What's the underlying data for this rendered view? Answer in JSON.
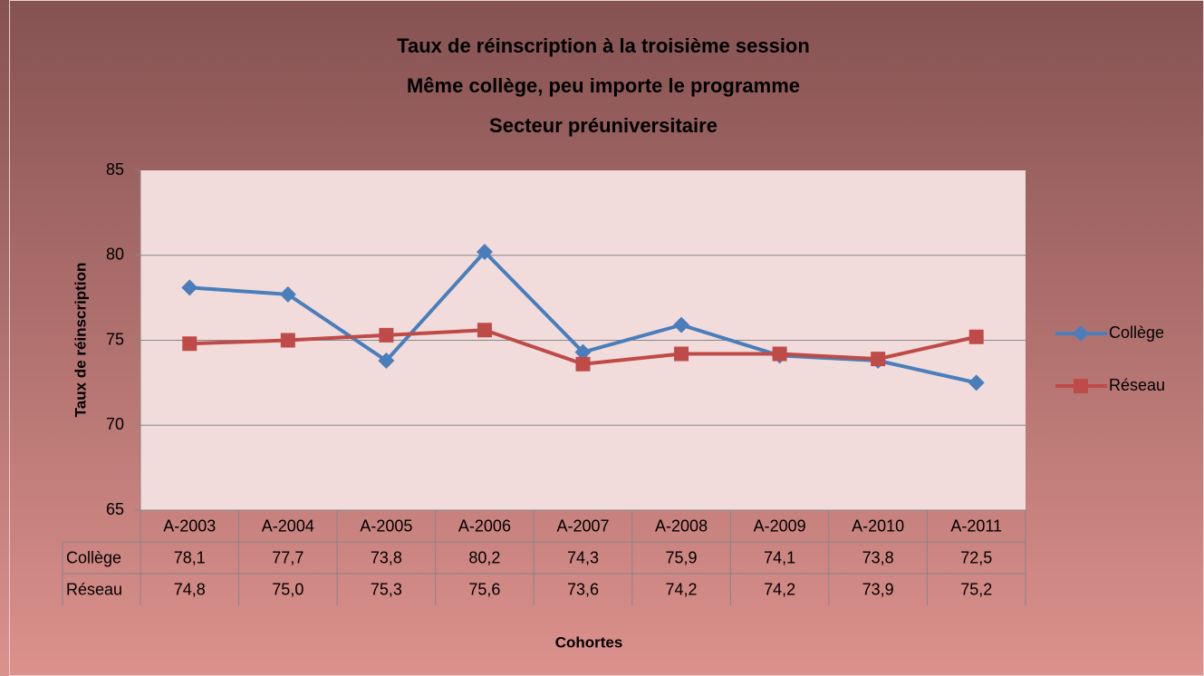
{
  "chart_data": {
    "type": "line",
    "title": [
      "Taux de réinscription à la troisième session",
      "Même collège, peu importe le programme",
      "Secteur préuniversitaire"
    ],
    "categories": [
      "A-2003",
      "A-2004",
      "A-2005",
      "A-2006",
      "A-2007",
      "A-2008",
      "A-2009",
      "A-2010",
      "A-2011"
    ],
    "series": [
      {
        "name": "Collège",
        "color": "#4a7ebb",
        "marker": "diamond",
        "values": [
          78.1,
          77.7,
          73.8,
          80.2,
          74.3,
          75.9,
          74.1,
          73.8,
          72.5
        ],
        "value_labels": [
          "78,1",
          "77,7",
          "73,8",
          "80,2",
          "74,3",
          "75,9",
          "74,1",
          "73,8",
          "72,5"
        ]
      },
      {
        "name": "Réseau",
        "color": "#be4b48",
        "marker": "square",
        "values": [
          74.8,
          75.0,
          75.3,
          75.6,
          73.6,
          74.2,
          74.2,
          73.9,
          75.2
        ],
        "value_labels": [
          "74,8",
          "75,0",
          "75,3",
          "75,6",
          "73,6",
          "74,2",
          "74,2",
          "73,9",
          "75,2"
        ]
      }
    ],
    "ylabel": "Taux de réinscription",
    "xlabel": "Cohortes",
    "ylim": [
      65,
      85
    ],
    "yticks": [
      65,
      70,
      75,
      80,
      85
    ],
    "grid": true,
    "legend": "right"
  }
}
